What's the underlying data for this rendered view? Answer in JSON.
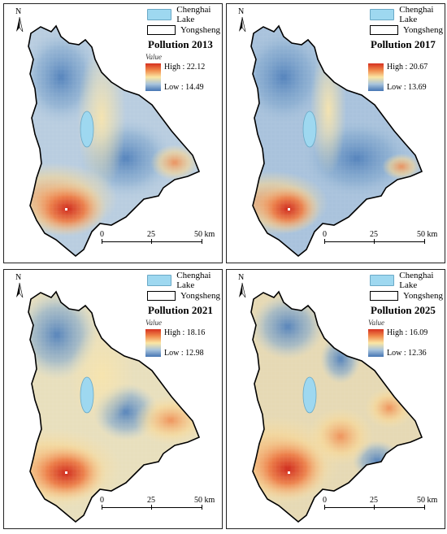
{
  "legend": {
    "lake_label": "Chenghai Lake",
    "county_label": "Yongsheng",
    "value_label": "Value",
    "lake_color": "#9ed8f0"
  },
  "scale_bar": {
    "labels": [
      "0",
      "25",
      "50 km"
    ]
  },
  "north_label": "N",
  "color_ramp": {
    "high": "#d7301f",
    "mid": "#fbe6a3",
    "low": "#4575b4"
  },
  "panels": [
    {
      "title": "Pollution 2013",
      "high": "High : 22.12",
      "low": "Low : 14.49"
    },
    {
      "title": "Pollution 2017",
      "high": "High : 20.67",
      "low": "Low : 13.69"
    },
    {
      "title": "Pollution 2021",
      "high": "High : 18.16",
      "low": "Low : 12.98"
    },
    {
      "title": "Pollution 2025",
      "high": "High : 16.09",
      "low": "Low : 12.36"
    }
  ]
}
